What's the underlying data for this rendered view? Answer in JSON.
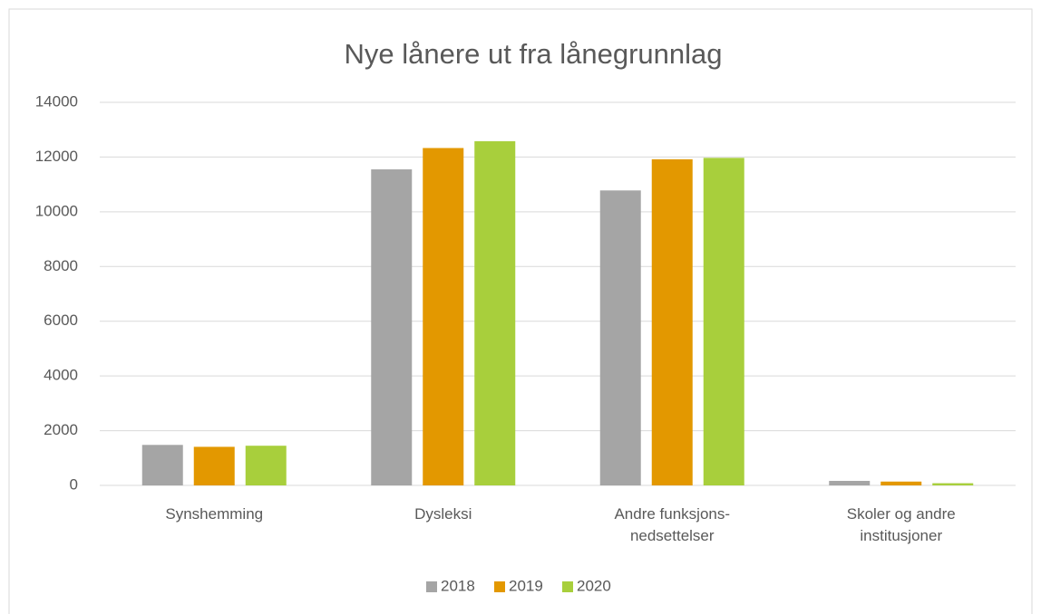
{
  "chart_data": {
    "type": "bar",
    "title": "Nye lånere ut fra lånegrunnlag",
    "categories": [
      "Synshemming",
      "Dysleksi",
      "Andre funksjons-\nnedsettelser",
      "Skoler og andre\ninstitusjoner"
    ],
    "series": [
      {
        "name": "2018",
        "color": "#a5a5a5",
        "values": [
          1480,
          11550,
          10780,
          165
        ]
      },
      {
        "name": "2019",
        "color": "#e39800",
        "values": [
          1410,
          12330,
          11920,
          140
        ]
      },
      {
        "name": "2020",
        "color": "#a8cf3c",
        "values": [
          1450,
          12580,
          11970,
          80
        ]
      }
    ],
    "ylim": [
      0,
      14000
    ],
    "yticks": [
      0,
      2000,
      4000,
      6000,
      8000,
      10000,
      12000,
      14000
    ],
    "grid": true,
    "legend": "bottom"
  }
}
